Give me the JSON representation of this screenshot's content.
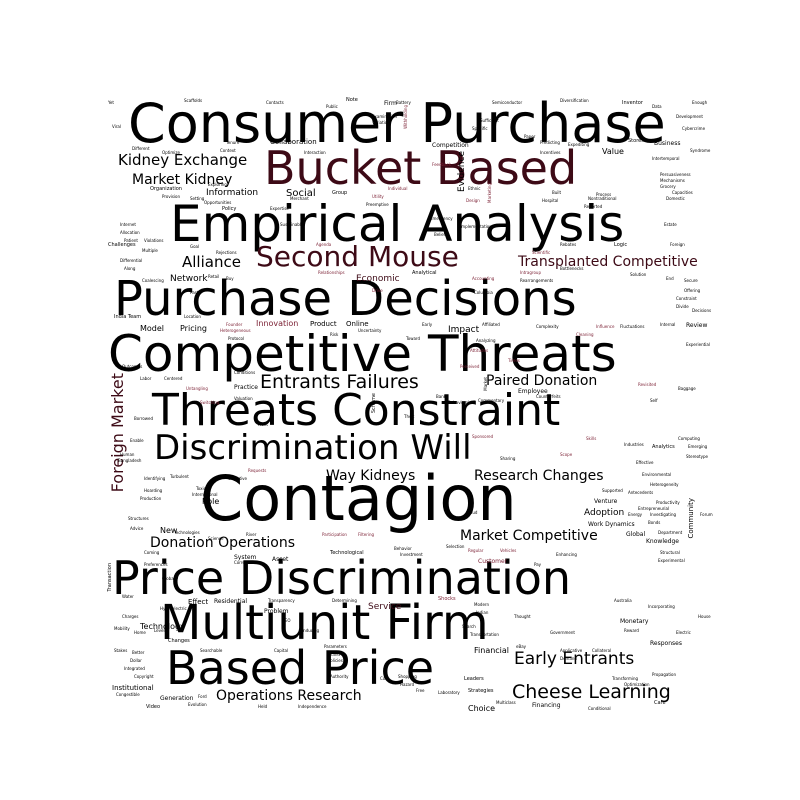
{
  "palette": {
    "primary": "#000000",
    "accent": "#3d0a16",
    "minor": "#7a1e32"
  },
  "words": {
    "consumer_purchase": "Consumer Purchase",
    "bucket_based": "Bucket Based",
    "empirical_analysis": "Empirical Analysis",
    "second_mouse": "Second Mouse",
    "purchase_decisions": "Purchase Decisions",
    "competitive_threats": "Competitive Threats",
    "threats_constraint": "Threats Constraint",
    "discrimination_will": "Discrimination Will",
    "contagion": "Contagion",
    "price_discrimination": "Price Discrimination",
    "multiunit_firm": "Multiunit Firm",
    "based_price": "Based Price",
    "kidney_exchange": "Kidney Exchange",
    "market_kidney": "Market Kidney",
    "alliance": "Alliance",
    "transplanted_competitive": "Transplanted Competitive",
    "entrants_failures": "Entrants Failures",
    "paired_donation": "Paired Donation",
    "foreign_market": "Foreign Market",
    "way_kidneys": "Way Kidneys",
    "research_changes": "Research Changes",
    "market_competitive": "Market Competitive",
    "donation_operations": "Donation Operations",
    "early_entrants": "Early Entrants",
    "cheese_learning": "Cheese Learning",
    "operations_research": "Operations Research",
    "network": "Network",
    "information": "Information",
    "social": "Social",
    "innovation": "Innovation",
    "impact": "Impact",
    "model": "Model",
    "pricing": "Pricing",
    "value": "Value",
    "economic": "Economic",
    "service": "Service",
    "adoption": "Adoption",
    "technology": "Technology",
    "financial": "Financial",
    "choice": "Choice",
    "evidence": "Evidence",
    "online": "Online",
    "product": "Product",
    "role": "Role",
    "new": "New",
    "effect": "Effect",
    "residential": "Residential",
    "problem": "Problem",
    "customer": "Customer",
    "employee": "Employee",
    "practice": "Practice",
    "community": "Community",
    "work_dynamics": "Work Dynamics",
    "venture": "Venture",
    "global": "Global",
    "monetary": "Monetary",
    "responses": "Responses",
    "knowledge": "Knowledge",
    "review": "Review",
    "business": "Business",
    "collaboration": "Collaboration",
    "competition": "Competition",
    "strategies": "Strategies",
    "financing": "Financing",
    "generation": "Generation",
    "institutional": "Institutional",
    "video": "Video",
    "care": "Care",
    "leaders": "Leaders",
    "shocks": "Shocks",
    "analytics": "Analytics",
    "asset": "Asset",
    "system": "System",
    "scheme": "Scheme",
    "market_small": "Market",
    "marketing": "Marketing",
    "firm_small": "Firm",
    "battery": "Battery",
    "semiconductor": "Semiconductor",
    "diversification": "Diversification",
    "inventor": "Inventor",
    "scaffolds": "Scaffolds",
    "contacts": "Contacts",
    "note": "Note",
    "policy": "Policy",
    "sufficient": "Sufficient",
    "paper": "Paper",
    "stores": "Stores",
    "cybercrime": "Cybercrime",
    "data": "Data",
    "enough": "Enough",
    "development": "Development",
    "tenure": "Tenure",
    "different": "Different",
    "optimize": "Optimize",
    "predicting": "Predicting",
    "expediting": "Expediting",
    "syndrome": "Syndrome",
    "intertemporal": "Intertemporal",
    "organization": "Organization",
    "provision": "Provision",
    "setting": "Setting",
    "merchant": "Merchant",
    "group": "Group",
    "utility": "Utility",
    "individual": "Individual",
    "ethnic": "Ethnic",
    "built": "Built",
    "process": "Process",
    "grocery": "Grocery",
    "domestic": "Domestic",
    "opportunities": "Opportunities",
    "expertise": "Expertise",
    "sustainable": "Sustainable",
    "design": "Design",
    "hospital": "Hospital",
    "reported": "Reported",
    "nontraditional": "Nontraditional",
    "internet": "Internet",
    "allocation": "Allocation",
    "challenges": "Challenges",
    "multiple": "Multiple",
    "along": "Along",
    "differential": "Differential",
    "agenda": "Agenda",
    "implementation": "Implementation",
    "emergency": "Emergency",
    "beliefs": "Beliefs",
    "rebates": "Rebates",
    "logic": "Logic",
    "estate": "Estate",
    "foreign": "Foreign",
    "scientific": "Scientific",
    "coalescing": "Coalescing",
    "retail": "Retail",
    "buy": "Buy",
    "relationships": "Relationships",
    "analytical": "Analytical",
    "accounting": "Accounting",
    "intragroup": "Intragroup",
    "rearrangements": "Rearrangements",
    "bottlenecks": "Bottlenecks",
    "solution": "Solution",
    "end": "End",
    "secure": "Secure",
    "offering": "Offering",
    "constraint_small": "Constraint",
    "divide": "Divide",
    "decisions_small": "Decisions",
    "india_team": "India Team",
    "location": "Location",
    "founder": "Founder",
    "heterogeneous": "Heterogeneous",
    "drive": "Drive",
    "columbia": "Columbia",
    "early": "Early",
    "affiliated": "Affiliated",
    "complexity": "Complexity",
    "influence": "Influence",
    "fluctuations": "Fluctuations",
    "internal": "Internal",
    "risk": "Risk",
    "analyzing": "Analyzing",
    "attitudes": "Attitudes",
    "cleaning": "Cleaning",
    "experiential": "Experiential",
    "labor": "Labor",
    "centered": "Centered",
    "outcomes": "Outcomes",
    "conditions": "Conditions",
    "uncertainty": "Uncertainty",
    "perceived": "Perceived",
    "times": "Times",
    "revisited": "Revisited",
    "baggage": "Baggage",
    "untangling": "Untangling",
    "valuation": "Valuation",
    "bank": "Bank",
    "behavioral": "Behavioral",
    "commentary": "Commentary",
    "counterfeits": "Counterfeits",
    "self": "Self",
    "switching": "Switching",
    "theft": "Theft",
    "fleet": "Fleet",
    "borrowed": "Borrowed",
    "enable": "Enable",
    "human": "Human",
    "bangladesh": "Bangladesh",
    "sponsored": "Sponsored",
    "skills": "Skills",
    "industries": "Industries",
    "stereotype": "Stereotype",
    "emerging": "Emerging",
    "computing": "Computing",
    "identifying": "Identifying",
    "hoarding": "Hoarding",
    "production": "Production",
    "turbulent": "Turbulent",
    "objective": "Objective",
    "toxic": "Toxic",
    "international": "International",
    "requests": "Requests",
    "sharing": "Sharing",
    "scope": "Scope",
    "effective": "Effective",
    "environmental": "Environmental",
    "heterogeneity": "Heterogeneity",
    "productivity": "Productivity",
    "antecedents": "Antecedents",
    "supported": "Supported",
    "entrepreneurial": "Entrepreneurial",
    "investigating": "Investigating",
    "forum": "Forum",
    "structures": "Structures",
    "advice": "Advice",
    "technologies": "Technologies",
    "science": "Science",
    "river": "River",
    "cloud": "Cloud",
    "bonds": "Bonds",
    "department": "Department",
    "energy": "Energy",
    "structural": "Structural",
    "experimental": "Experimental",
    "coming": "Coming",
    "preferences": "Preferences",
    "correctable": "Correctable",
    "technological": "Technological",
    "participation": "Participation",
    "filtering": "Filtering",
    "behavior": "Behavior",
    "investment": "Investment",
    "selection": "Selection",
    "regular": "Regular",
    "vehicles": "Vehicles",
    "enhancing": "Enhancing",
    "pay": "Pay",
    "transaction": "Transaction",
    "globally": "Globally",
    "hydroelectric": "Hydroelectric",
    "water": "Water",
    "charges": "Charges",
    "mobility": "Mobility",
    "home": "Home",
    "level": "Level",
    "ceo": "CEO",
    "inducing": "Inducing",
    "transparency": "Transparency",
    "determining": "Determining",
    "modern": "Modern",
    "indian": "Indian",
    "search": "Search",
    "transportation": "Transportation",
    "thought": "Thought",
    "government": "Government",
    "australia": "Australia",
    "incorporating": "Incorporating",
    "reward": "Reward",
    "electric": "Electric",
    "house": "House",
    "changes_small": "Changes",
    "stakes": "Stakes",
    "better": "Better",
    "dollar": "Dollar",
    "integrated": "Integrated",
    "copyright": "Copyright",
    "congestible": "Congestible",
    "searchable": "Searchable",
    "capital": "Capital",
    "parameters": "Parameters",
    "brand": "Brand",
    "policies": "Policies",
    "authority": "Authority",
    "cost": "Cost",
    "shopping": "Shopping",
    "hazard": "Hazard",
    "free": "Free",
    "laboratory": "Laboratory",
    "multiclass": "Multiclass",
    "ebay": "eBay",
    "applicative": "Applicative",
    "collateral": "Collateral",
    "demand": "Demand",
    "transforming": "Transforming",
    "optimization": "Optimization",
    "propagation": "Propagation",
    "ford": "Ford",
    "evolution": "Evolution",
    "held": "Held",
    "independence": "Independence",
    "conditional": "Conditional",
    "viral": "Viral",
    "yet": "Yet",
    "public": "Public",
    "variation": "Variation",
    "withholding": "Withholding",
    "incentives": "Incentives",
    "persuasiveness": "Persuasiveness",
    "mechanisms": "Mechanisms",
    "capacities": "Capacities",
    "interaction": "Interaction",
    "context": "Context",
    "exploring": "Exploring",
    "preemptive": "Preemptive",
    "rejections": "Rejections",
    "goal": "Goal",
    "patient": "Patient",
    "violations": "Violations",
    "past": "Past",
    "pricing_power": "Protocol",
    "toward": "Toward",
    "dimension": "Dimension",
    "creation": "Creation",
    "specific": "Specific",
    "interfaces": "Interfaces",
    "feedback": "Feedback",
    "examination": "Examination"
  }
}
